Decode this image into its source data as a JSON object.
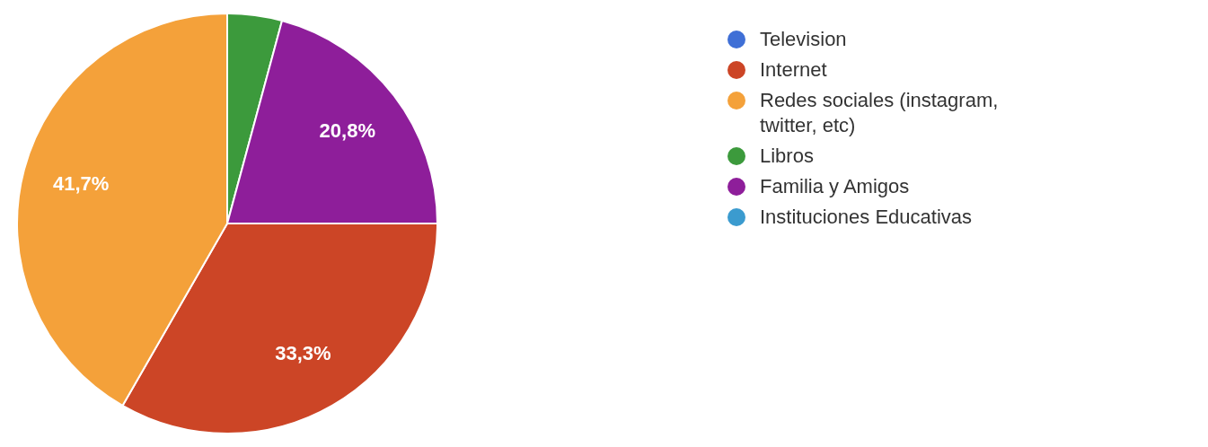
{
  "chart_data": {
    "type": "pie",
    "categories": [
      "Television",
      "Internet",
      "Redes sociales (instagram, twitter, etc)",
      "Libros",
      "Familia y Amigos",
      "Instituciones Educativas"
    ],
    "values": [
      0,
      33.3,
      41.7,
      4.2,
      20.8,
      0
    ],
    "colors": [
      "#3f6fd6",
      "#cc4526",
      "#f4a13a",
      "#3c9a3c",
      "#8e1e9a",
      "#3b9bcf"
    ],
    "value_labels": [
      null,
      "33,3%",
      "41,7%",
      null,
      "20,8%",
      null
    ],
    "legend": "right"
  }
}
